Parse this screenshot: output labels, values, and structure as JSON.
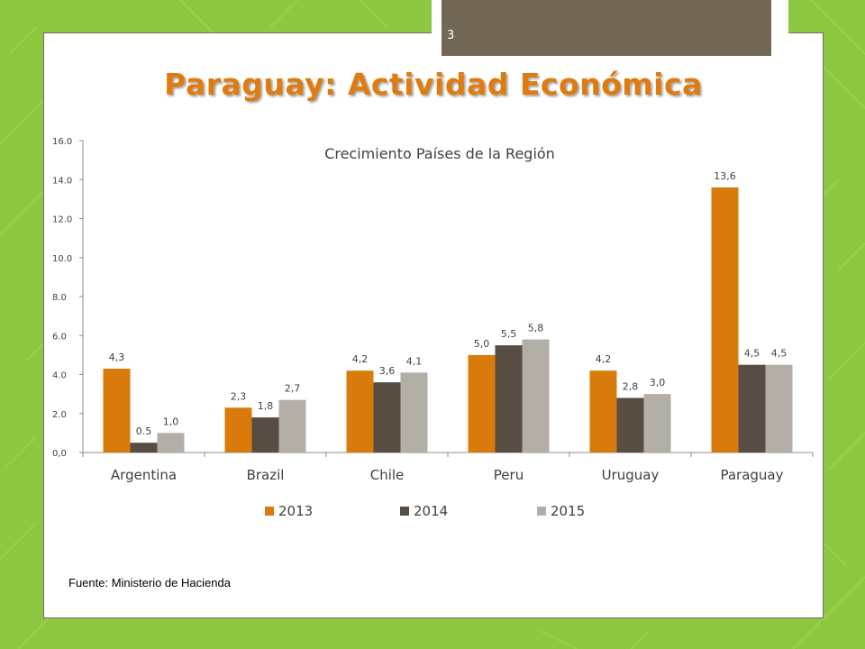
{
  "slide": {
    "number": "3",
    "title": "Paraguay: Actividad Económica",
    "source": "Fuente: Ministerio de Hacienda"
  },
  "colors": {
    "background": "#8dc63f",
    "title": "#e07b10",
    "series_2013": "#d97b0b",
    "series_2014": "#574d42",
    "series_2015": "#b3aea6",
    "number_tab": "#726655"
  },
  "chart_data": {
    "type": "bar",
    "title": "Crecimiento Países de la Región",
    "categories": [
      "Argentina",
      "Brazil",
      "Chile",
      "Peru",
      "Uruguay",
      "Paraguay"
    ],
    "series": [
      {
        "name": "2013",
        "values": [
          4.3,
          2.3,
          4.2,
          5.0,
          4.2,
          13.6
        ],
        "labels": [
          "4,3",
          "2,3",
          "4,2",
          "5,0",
          "4,2",
          "13,6"
        ],
        "color": "#d97b0b"
      },
      {
        "name": "2014",
        "values": [
          0.5,
          1.8,
          3.6,
          5.5,
          2.8,
          4.5
        ],
        "labels": [
          "0.5",
          "1,8",
          "3,6",
          "5,5",
          "2,8",
          "4,5"
        ],
        "color": "#574d42"
      },
      {
        "name": "2015",
        "values": [
          1.0,
          2.7,
          4.1,
          5.8,
          3.0,
          4.5
        ],
        "labels": [
          "1,0",
          "2,7",
          "4,1",
          "5,8",
          "3,0",
          "4,5"
        ],
        "color": "#b3aea6"
      }
    ],
    "yticks": [
      "0,0",
      "2.0",
      "4.0",
      "6.0",
      "8.0",
      "10.0",
      "12.0",
      "14.0",
      "16.0"
    ],
    "ylim": [
      0,
      16
    ],
    "grid": false,
    "legend_position": "bottom"
  }
}
